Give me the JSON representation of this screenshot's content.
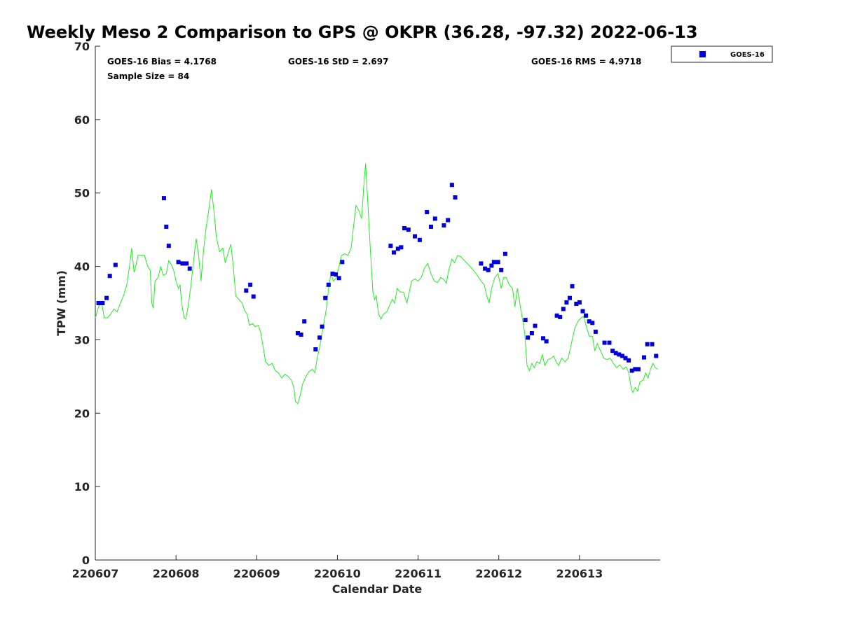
{
  "chart_data": {
    "type": "scatter",
    "title": "Weekly Meso 2 Comparison to GPS @ OKPR (36.28, -97.32) 2022-06-13",
    "xlabel": "Calendar Date",
    "ylabel": "TPW (mm)",
    "xlim": [
      0,
      7
    ],
    "ylim": [
      0,
      70
    ],
    "x_ticks": [
      0,
      1,
      2,
      3,
      4,
      5,
      6
    ],
    "x_tick_labels": [
      "220607",
      "220608",
      "220609",
      "220610",
      "220611",
      "220612",
      "220613"
    ],
    "y_ticks": [
      0,
      10,
      20,
      30,
      40,
      50,
      60,
      70
    ],
    "y_tick_labels": [
      "0",
      "10",
      "20",
      "30",
      "40",
      "50",
      "60",
      "70"
    ],
    "legend": {
      "position": "top-right",
      "entries": [
        "GOES-16"
      ]
    },
    "stats": {
      "bias": "GOES-16 Bias = 4.1768",
      "std": "GOES-16 StD = 2.697",
      "rms": "GOES-16 RMS = 4.9718",
      "sample": "Sample Size = 84"
    },
    "colors": {
      "goes": "#0000dd",
      "gps": "#22ee22",
      "axis": "#262626"
    },
    "series": [
      {
        "name": "GOES-16",
        "kind": "scatter",
        "points": [
          [
            0.04,
            35.0
          ],
          [
            0.09,
            35.0
          ],
          [
            0.14,
            35.7
          ],
          [
            0.18,
            38.7
          ],
          [
            0.25,
            40.2
          ],
          [
            0.85,
            49.3
          ],
          [
            0.88,
            45.4
          ],
          [
            0.91,
            42.8
          ],
          [
            1.03,
            40.6
          ],
          [
            1.08,
            40.4
          ],
          [
            1.13,
            40.4
          ],
          [
            1.17,
            39.7
          ],
          [
            1.87,
            36.7
          ],
          [
            1.92,
            37.5
          ],
          [
            1.96,
            35.9
          ],
          [
            2.51,
            30.9
          ],
          [
            2.55,
            30.7
          ],
          [
            2.59,
            32.5
          ],
          [
            2.73,
            28.7
          ],
          [
            2.78,
            30.3
          ],
          [
            2.81,
            31.8
          ],
          [
            2.85,
            35.7
          ],
          [
            2.89,
            37.5
          ],
          [
            2.94,
            39.0
          ],
          [
            2.98,
            38.9
          ],
          [
            3.02,
            38.4
          ],
          [
            3.06,
            40.6
          ],
          [
            3.66,
            42.8
          ],
          [
            3.7,
            41.9
          ],
          [
            3.75,
            42.4
          ],
          [
            3.79,
            42.6
          ],
          [
            3.83,
            45.2
          ],
          [
            3.88,
            45.0
          ],
          [
            3.96,
            44.1
          ],
          [
            4.02,
            43.6
          ],
          [
            4.11,
            47.4
          ],
          [
            4.16,
            45.4
          ],
          [
            4.21,
            46.5
          ],
          [
            4.32,
            45.6
          ],
          [
            4.37,
            46.3
          ],
          [
            4.42,
            51.1
          ],
          [
            4.46,
            49.4
          ],
          [
            4.78,
            40.4
          ],
          [
            4.83,
            39.7
          ],
          [
            4.87,
            39.5
          ],
          [
            4.91,
            40.1
          ],
          [
            4.94,
            40.6
          ],
          [
            4.99,
            40.6
          ],
          [
            5.03,
            39.5
          ],
          [
            5.08,
            41.7
          ],
          [
            5.33,
            32.7
          ],
          [
            5.36,
            30.3
          ],
          [
            5.41,
            30.9
          ],
          [
            5.45,
            31.9
          ],
          [
            5.55,
            30.2
          ],
          [
            5.59,
            29.8
          ],
          [
            5.72,
            33.3
          ],
          [
            5.76,
            33.1
          ],
          [
            5.8,
            34.2
          ],
          [
            5.84,
            35.1
          ],
          [
            5.88,
            35.7
          ],
          [
            5.91,
            37.3
          ],
          [
            5.96,
            34.9
          ],
          [
            6.0,
            35.1
          ],
          [
            6.04,
            33.9
          ],
          [
            6.08,
            33.3
          ],
          [
            6.12,
            32.5
          ],
          [
            6.16,
            32.3
          ],
          [
            6.2,
            31.1
          ],
          [
            6.31,
            29.6
          ],
          [
            6.37,
            29.6
          ],
          [
            6.41,
            28.5
          ],
          [
            6.45,
            28.2
          ],
          [
            6.49,
            28.0
          ],
          [
            6.53,
            27.8
          ],
          [
            6.57,
            27.5
          ],
          [
            6.61,
            27.2
          ],
          [
            6.65,
            25.8
          ],
          [
            6.69,
            26.0
          ],
          [
            6.73,
            26.0
          ],
          [
            6.8,
            27.6
          ],
          [
            6.84,
            29.4
          ],
          [
            6.9,
            29.4
          ],
          [
            6.95,
            27.8
          ]
        ]
      },
      {
        "name": "GPS",
        "kind": "line",
        "points": [
          [
            0.0,
            33.0
          ],
          [
            0.04,
            34.5
          ],
          [
            0.08,
            35.0
          ],
          [
            0.11,
            33.0
          ],
          [
            0.15,
            33.0
          ],
          [
            0.19,
            33.5
          ],
          [
            0.23,
            34.2
          ],
          [
            0.27,
            33.8
          ],
          [
            0.31,
            35.0
          ],
          [
            0.35,
            36.0
          ],
          [
            0.39,
            37.5
          ],
          [
            0.43,
            40.5
          ],
          [
            0.45,
            42.5
          ],
          [
            0.48,
            39.2
          ],
          [
            0.5,
            40.0
          ],
          [
            0.53,
            41.5
          ],
          [
            0.57,
            41.5
          ],
          [
            0.61,
            41.5
          ],
          [
            0.65,
            40.0
          ],
          [
            0.68,
            39.5
          ],
          [
            0.7,
            35.0
          ],
          [
            0.72,
            34.3
          ],
          [
            0.74,
            38.0
          ],
          [
            0.78,
            38.5
          ],
          [
            0.81,
            40.0
          ],
          [
            0.84,
            38.8
          ],
          [
            0.88,
            39.0
          ],
          [
            0.91,
            40.8
          ],
          [
            0.94,
            40.3
          ],
          [
            0.97,
            39.5
          ],
          [
            1.0,
            38.0
          ],
          [
            1.03,
            37.0
          ],
          [
            1.05,
            37.5
          ],
          [
            1.07,
            35.0
          ],
          [
            1.1,
            33.0
          ],
          [
            1.12,
            32.8
          ],
          [
            1.15,
            34.5
          ],
          [
            1.18,
            37.0
          ],
          [
            1.22,
            41.0
          ],
          [
            1.25,
            43.8
          ],
          [
            1.28,
            41.5
          ],
          [
            1.31,
            38.0
          ],
          [
            1.34,
            42.0
          ],
          [
            1.37,
            45.0
          ],
          [
            1.41,
            48.0
          ],
          [
            1.44,
            50.5
          ],
          [
            1.47,
            47.5
          ],
          [
            1.5,
            44.0
          ],
          [
            1.54,
            42.0
          ],
          [
            1.58,
            42.5
          ],
          [
            1.61,
            40.5
          ],
          [
            1.65,
            42.0
          ],
          [
            1.68,
            43.0
          ],
          [
            1.71,
            40.0
          ],
          [
            1.74,
            36.0
          ],
          [
            1.78,
            35.5
          ],
          [
            1.82,
            35.0
          ],
          [
            1.85,
            34.0
          ],
          [
            1.88,
            33.5
          ],
          [
            1.91,
            32.0
          ],
          [
            1.95,
            32.2
          ],
          [
            1.98,
            31.8
          ],
          [
            2.02,
            32.0
          ],
          [
            2.05,
            31.0
          ],
          [
            2.08,
            29.0
          ],
          [
            2.11,
            27.0
          ],
          [
            2.15,
            26.5
          ],
          [
            2.19,
            26.8
          ],
          [
            2.23,
            25.8
          ],
          [
            2.27,
            25.5
          ],
          [
            2.31,
            24.8
          ],
          [
            2.35,
            25.3
          ],
          [
            2.39,
            25.0
          ],
          [
            2.43,
            24.5
          ],
          [
            2.46,
            23.5
          ],
          [
            2.48,
            21.6
          ],
          [
            2.51,
            21.3
          ],
          [
            2.54,
            22.5
          ],
          [
            2.57,
            24.0
          ],
          [
            2.61,
            25.0
          ],
          [
            2.65,
            25.7
          ],
          [
            2.69,
            26.0
          ],
          [
            2.72,
            25.5
          ],
          [
            2.75,
            27.5
          ],
          [
            2.78,
            29.0
          ],
          [
            2.82,
            31.5
          ],
          [
            2.86,
            34.0
          ],
          [
            2.89,
            37.0
          ],
          [
            2.92,
            39.0
          ],
          [
            2.95,
            38.0
          ],
          [
            2.98,
            38.3
          ],
          [
            3.02,
            40.0
          ],
          [
            3.05,
            41.5
          ],
          [
            3.09,
            41.7
          ],
          [
            3.13,
            41.5
          ],
          [
            3.17,
            42.5
          ],
          [
            3.2,
            45.5
          ],
          [
            3.23,
            48.3
          ],
          [
            3.27,
            47.5
          ],
          [
            3.3,
            46.5
          ],
          [
            3.33,
            51.5
          ],
          [
            3.35,
            54.0
          ],
          [
            3.38,
            48.0
          ],
          [
            3.41,
            42.0
          ],
          [
            3.44,
            36.5
          ],
          [
            3.46,
            35.5
          ],
          [
            3.48,
            36.0
          ],
          [
            3.51,
            33.5
          ],
          [
            3.54,
            32.8
          ],
          [
            3.57,
            33.5
          ],
          [
            3.61,
            33.8
          ],
          [
            3.64,
            34.5
          ],
          [
            3.68,
            35.5
          ],
          [
            3.71,
            35.0
          ],
          [
            3.74,
            37.0
          ],
          [
            3.78,
            36.5
          ],
          [
            3.82,
            36.5
          ],
          [
            3.86,
            35.0
          ],
          [
            3.89,
            36.5
          ],
          [
            3.92,
            38.0
          ],
          [
            3.96,
            38.3
          ],
          [
            4.0,
            38.0
          ],
          [
            4.04,
            38.5
          ],
          [
            4.08,
            39.8
          ],
          [
            4.12,
            40.4
          ],
          [
            4.16,
            39.0
          ],
          [
            4.2,
            38.0
          ],
          [
            4.24,
            37.8
          ],
          [
            4.28,
            38.5
          ],
          [
            4.32,
            38.2
          ],
          [
            4.35,
            37.7
          ],
          [
            4.38,
            39.5
          ],
          [
            4.42,
            41.0
          ],
          [
            4.45,
            40.5
          ],
          [
            4.49,
            41.5
          ],
          [
            4.53,
            41.3
          ],
          [
            4.6,
            40.5
          ],
          [
            4.66,
            39.8
          ],
          [
            4.72,
            39.0
          ],
          [
            4.78,
            38.0
          ],
          [
            4.82,
            37.5
          ],
          [
            4.85,
            36.0
          ],
          [
            4.88,
            35.0
          ],
          [
            4.91,
            37.0
          ],
          [
            4.95,
            38.5
          ],
          [
            4.99,
            39.0
          ],
          [
            5.03,
            37.0
          ],
          [
            5.06,
            38.5
          ],
          [
            5.09,
            38.5
          ],
          [
            5.13,
            37.5
          ],
          [
            5.17,
            37.0
          ],
          [
            5.2,
            34.5
          ],
          [
            5.23,
            37.0
          ],
          [
            5.26,
            35.0
          ],
          [
            5.29,
            33.0
          ],
          [
            5.32,
            31.0
          ],
          [
            5.35,
            26.5
          ],
          [
            5.38,
            25.8
          ],
          [
            5.41,
            26.8
          ],
          [
            5.44,
            26.2
          ],
          [
            5.47,
            27.0
          ],
          [
            5.51,
            26.8
          ],
          [
            5.54,
            28.0
          ],
          [
            5.57,
            26.5
          ],
          [
            5.61,
            27.3
          ],
          [
            5.65,
            27.5
          ],
          [
            5.68,
            27.8
          ],
          [
            5.71,
            27.0
          ],
          [
            5.74,
            26.5
          ],
          [
            5.78,
            27.5
          ],
          [
            5.82,
            27.0
          ],
          [
            5.86,
            27.5
          ],
          [
            5.9,
            29.5
          ],
          [
            5.94,
            31.5
          ],
          [
            5.98,
            32.5
          ],
          [
            6.02,
            33.0
          ],
          [
            6.05,
            33.2
          ],
          [
            6.08,
            32.0
          ],
          [
            6.12,
            30.5
          ],
          [
            6.16,
            30.5
          ],
          [
            6.19,
            28.5
          ],
          [
            6.22,
            29.5
          ],
          [
            6.26,
            28.5
          ],
          [
            6.3,
            27.5
          ],
          [
            6.34,
            27.3
          ],
          [
            6.38,
            27.5
          ],
          [
            6.42,
            26.8
          ],
          [
            6.46,
            26.2
          ],
          [
            6.5,
            26.6
          ],
          [
            6.54,
            26.0
          ],
          [
            6.58,
            26.3
          ],
          [
            6.61,
            25.5
          ],
          [
            6.64,
            23.5
          ],
          [
            6.66,
            22.8
          ],
          [
            6.69,
            23.5
          ],
          [
            6.72,
            23.0
          ],
          [
            6.75,
            24.3
          ],
          [
            6.79,
            24.5
          ],
          [
            6.82,
            25.5
          ],
          [
            6.85,
            24.8
          ],
          [
            6.88,
            26.0
          ],
          [
            6.91,
            26.8
          ],
          [
            6.94,
            26.2
          ],
          [
            6.97,
            26.0
          ]
        ]
      }
    ]
  }
}
